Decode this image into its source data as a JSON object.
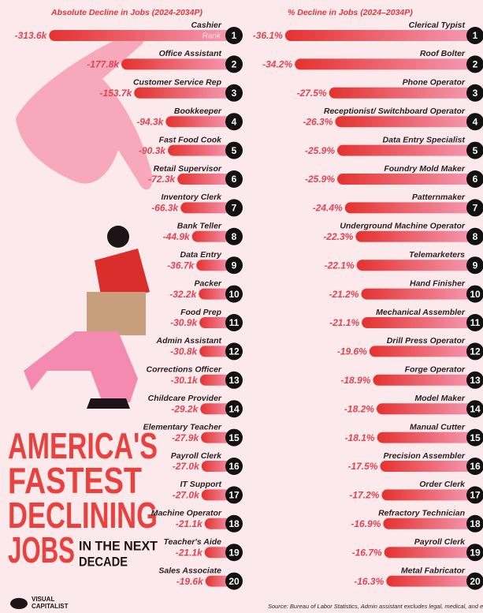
{
  "chart_data": [
    {
      "type": "bar",
      "orientation": "horizontal",
      "title": "Absolute Decline in Jobs (2024-2034P)",
      "rank_label": "Rank",
      "categories": [
        "Cashier",
        "Office Assistant",
        "Customer Service Rep",
        "Bookkeeper",
        "Fast Food Cook",
        "Retail Supervisor",
        "Inventory Clerk",
        "Bank Teller",
        "Data Entry",
        "Packer",
        "Food Prep",
        "Admin Assistant",
        "Corrections Officer",
        "Childcare Provider",
        "Elementary Teacher",
        "Payroll Clerk",
        "IT Support",
        "Machine Operator",
        "Teacher's Aide",
        "Sales Associate"
      ],
      "ranks": [
        1,
        2,
        3,
        4,
        5,
        6,
        7,
        8,
        9,
        10,
        11,
        12,
        13,
        14,
        15,
        16,
        17,
        18,
        19,
        20
      ],
      "values": [
        -313.6,
        -177.8,
        -153.7,
        -94.3,
        -90.3,
        -72.3,
        -66.3,
        -44.9,
        -36.7,
        -32.2,
        -30.9,
        -30.8,
        -30.1,
        -29.2,
        -27.9,
        -27.0,
        -27.0,
        -21.1,
        -21.1,
        -19.6
      ],
      "value_labels": [
        "-313.6k",
        "-177.8k",
        "-153.7k",
        "-94.3k",
        "-90.3k",
        "-72.3k",
        "-66.3k",
        "-44.9k",
        "-36.7k",
        "-32.2k",
        "-30.9k",
        "-30.8k",
        "-30.1k",
        "-29.2k",
        "-27.9k",
        "-27.0k",
        "-27.0k",
        "-21.1k",
        "-21.1k",
        "-19.6k"
      ],
      "xlim": [
        -320,
        0
      ],
      "colors": [
        "#e4322f",
        "#f59bb5"
      ]
    },
    {
      "type": "bar",
      "orientation": "horizontal",
      "title": "% Decline in Jobs (2024–2034P)",
      "categories": [
        "Clerical Typist",
        "Roof Bolter",
        "Phone Operator",
        "Receptionist/ Switchboard Operator",
        "Data Entry Specialist",
        "Foundry Mold Maker",
        "Patternmaker",
        "Underground Machine Operator",
        "Telemarketers",
        "Hand Finisher",
        "Mechanical Assembler",
        "Drill Press Operator",
        "Forge Operator",
        "Model Maker",
        "Manual Cutter",
        "Precision Assembler",
        "Order Clerk",
        "Refractory Technician",
        "Payroll Clerk",
        "Metal Fabricator"
      ],
      "ranks": [
        1,
        2,
        3,
        4,
        5,
        6,
        7,
        8,
        9,
        10,
        11,
        12,
        13,
        14,
        15,
        16,
        17,
        18,
        19,
        20
      ],
      "values": [
        -36.1,
        -34.2,
        -27.5,
        -26.3,
        -25.9,
        -25.9,
        -24.4,
        -22.3,
        -22.1,
        -21.2,
        -21.1,
        -19.6,
        -18.9,
        -18.2,
        -18.1,
        -17.5,
        -17.2,
        -16.9,
        -16.7,
        -16.3
      ],
      "value_labels": [
        "-36.1%",
        "-34.2%",
        "-27.5%",
        "-26.3%",
        "-25.9%",
        "-25.9%",
        "-24.4%",
        "-22.3%",
        "-22.1%",
        "-21.2%",
        "-21.1%",
        "-19.6%",
        "-18.9%",
        "-18.2%",
        "-18.1%",
        "-17.5%",
        "-17.2%",
        "-16.9%",
        "-16.7%",
        "-16.3%"
      ],
      "xlim": [
        -37,
        0
      ],
      "colors": [
        "#e4322f",
        "#f59bb5"
      ]
    }
  ],
  "headline": [
    "AMERICA'S",
    "FASTEST",
    "DECLINING",
    "JOBS"
  ],
  "headline_note": [
    "IN THE NEXT",
    "DECADE"
  ],
  "brand": [
    "VISUAL",
    "CAPITALIST"
  ],
  "source": "Source: Bureau of Labor Statistics, Admin assistant excludes legal, medical, and executi"
}
